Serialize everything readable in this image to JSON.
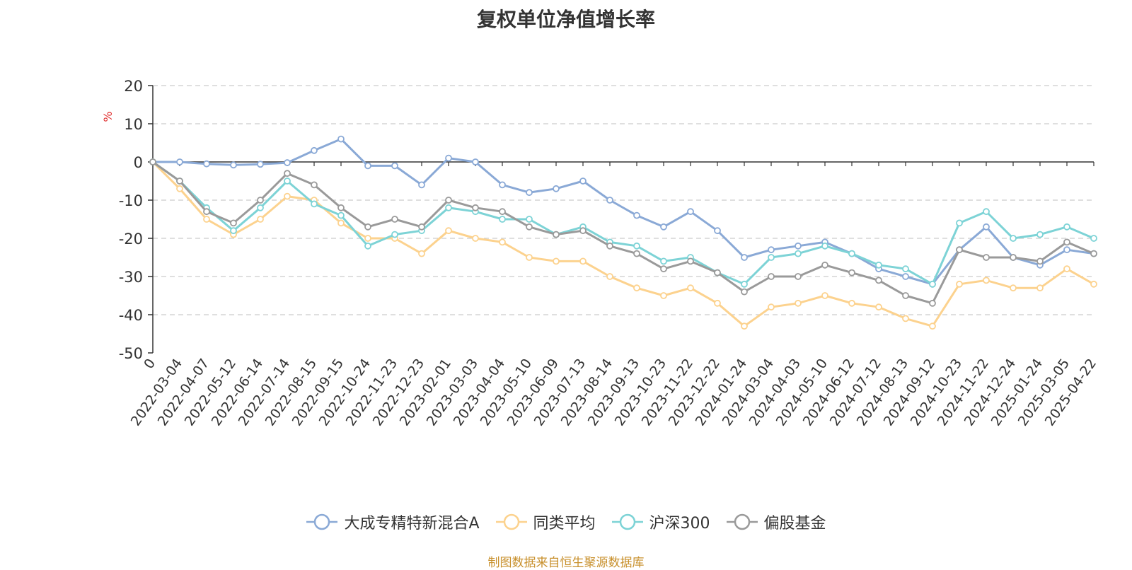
{
  "chart_data": {
    "type": "line",
    "title": "复权单位净值增长率",
    "ylabel": "%",
    "ylim": [
      -50,
      20
    ],
    "yticks": [
      20,
      10,
      0,
      -10,
      -20,
      -30,
      -40,
      -50
    ],
    "grid": true,
    "legend_position": "bottom",
    "source_note": "制图数据来自恒生聚源数据库",
    "x_tick_labels": [
      "0",
      "2022-03-04",
      "2022-04-07",
      "2022-05-12",
      "2022-06-14",
      "2022-07-14",
      "2022-08-15",
      "2022-09-15",
      "2022-10-24",
      "2022-11-23",
      "2022-12-23",
      "2023-02-01",
      "2023-03-03",
      "2023-04-04",
      "2023-05-10",
      "2023-06-09",
      "2023-07-13",
      "2023-08-14",
      "2023-09-13",
      "2023-10-23",
      "2023-11-22",
      "2023-12-22",
      "2024-01-24",
      "2024-03-04",
      "2024-04-03",
      "2024-05-10",
      "2024-06-12",
      "2024-07-12",
      "2024-08-13",
      "2024-09-12",
      "2024-10-23",
      "2024-11-22",
      "2024-12-24",
      "2025-01-24",
      "2025-03-05",
      "2025-04-22"
    ],
    "series": [
      {
        "name": "大成专精特新混合A",
        "color": "#8aa9d6",
        "values": [
          0,
          0,
          -0.5,
          -0.8,
          -0.6,
          -0.2,
          3,
          6,
          -1,
          -1,
          -6,
          1,
          0,
          -6,
          -8,
          -7,
          -5,
          -10,
          -14,
          -17,
          -13,
          -18,
          -25,
          -23,
          -22,
          -21,
          -24,
          -28,
          -30,
          -32,
          -23,
          -17,
          -25,
          -27,
          -23,
          -24
        ]
      },
      {
        "name": "同类平均",
        "color": "#fcd28e",
        "values": [
          0,
          -7,
          -15,
          -19,
          -15,
          -9,
          -10,
          -16,
          -20,
          -20,
          -24,
          -18,
          -20,
          -21,
          -25,
          -26,
          -26,
          -30,
          -33,
          -35,
          -33,
          -37,
          -43,
          -38,
          -37,
          -35,
          -37,
          -38,
          -41,
          -43,
          -32,
          -31,
          -33,
          -33,
          -28,
          -32
        ]
      },
      {
        "name": "沪深300",
        "color": "#7dd3d6",
        "values": [
          0,
          -5,
          -12,
          -18,
          -12,
          -5,
          -11,
          -14,
          -22,
          -19,
          -18,
          -12,
          -13,
          -15,
          -15,
          -19,
          -17,
          -21,
          -22,
          -26,
          -25,
          -29,
          -32,
          -25,
          -24,
          -22,
          -24,
          -27,
          -28,
          -32,
          -16,
          -13,
          -20,
          -19,
          -17,
          -20
        ]
      },
      {
        "name": "偏股基金",
        "color": "#9a9a9a",
        "values": [
          0,
          -5,
          -13,
          -16,
          -10,
          -3,
          -6,
          -12,
          -17,
          -15,
          -17,
          -10,
          -12,
          -13,
          -17,
          -19,
          -18,
          -22,
          -24,
          -28,
          -26,
          -29,
          -34,
          -30,
          -30,
          -27,
          -29,
          -31,
          -35,
          -37,
          -23,
          -25,
          -25,
          -26,
          -21,
          -24
        ]
      }
    ]
  }
}
